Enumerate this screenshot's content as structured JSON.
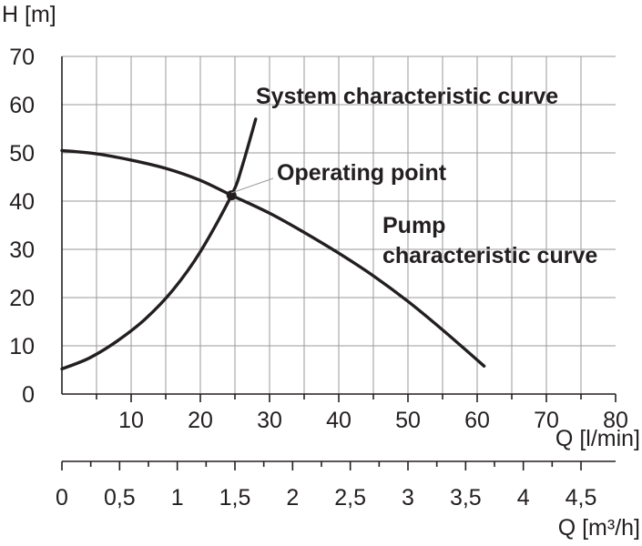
{
  "chart_data": {
    "type": "line",
    "title": "",
    "ylabel": "H [m]",
    "xlabel": "Q [l/min]",
    "x2label": "Q [m³/h]",
    "xlim": [
      0,
      80
    ],
    "ylim": [
      0,
      70
    ],
    "x2lim": [
      0,
      4.8
    ],
    "grid": true,
    "x_ticks": [
      "10",
      "20",
      "30",
      "40",
      "50",
      "60",
      "70",
      "80"
    ],
    "x_tick_values": [
      10,
      20,
      30,
      40,
      50,
      60,
      70,
      80
    ],
    "y_ticks": [
      "0",
      "10",
      "20",
      "30",
      "40",
      "50",
      "60",
      "70"
    ],
    "y_tick_values": [
      0,
      10,
      20,
      30,
      40,
      50,
      60,
      70
    ],
    "x2_ticks": [
      "0",
      "0,5",
      "1",
      "1,5",
      "2",
      "2,5",
      "3",
      "3,5",
      "4",
      "4,5"
    ],
    "x2_tick_values": [
      0,
      0.5,
      1,
      1.5,
      2,
      2.5,
      3,
      3.5,
      4,
      4.5
    ],
    "series": [
      {
        "name": "Pump characteristic curve",
        "x": [
          0,
          5,
          10,
          15,
          20,
          24.5,
          30,
          35,
          40,
          45,
          50,
          55,
          61
        ],
        "y": [
          50.5,
          49.8,
          48.5,
          46.8,
          44.3,
          41.2,
          37.5,
          33.5,
          29.2,
          24.5,
          19.2,
          13.3,
          5.8
        ]
      },
      {
        "name": "System characteristic curve",
        "x": [
          0,
          4,
          8,
          12,
          16,
          20,
          24.5,
          26,
          28
        ],
        "y": [
          5.2,
          7.5,
          11,
          15.5,
          21.5,
          29.5,
          41.2,
          47,
          57
        ]
      }
    ],
    "operating_point": {
      "label": "Operating point",
      "x": 24.5,
      "y": 41.2
    },
    "annotations": [
      {
        "text": "System characteristic curve"
      },
      {
        "text": "Operating point"
      },
      {
        "text": "Pump"
      },
      {
        "text": "characteristic curve"
      }
    ]
  }
}
